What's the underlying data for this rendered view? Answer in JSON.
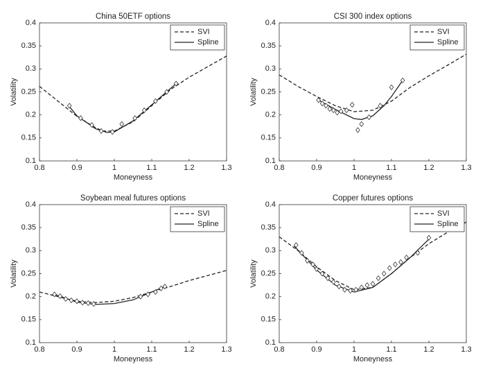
{
  "chart_data": [
    {
      "type": "line",
      "title": "China 50ETF options",
      "xlabel": "Moneyness",
      "ylabel": "Volatility",
      "xlim": [
        0.8,
        1.3
      ],
      "ylim": [
        0.1,
        0.4
      ],
      "xticks": [
        0.8,
        0.9,
        1,
        1.1,
        1.2,
        1.3
      ],
      "yticks": [
        0.1,
        0.15,
        0.2,
        0.25,
        0.3,
        0.35,
        0.4
      ],
      "legend": "upper right",
      "series": [
        {
          "name": "SVI",
          "color": "#222222",
          "dashed": true,
          "x": [
            0.8,
            0.9,
            0.95,
            0.97,
            1.0,
            1.05,
            1.1,
            1.15,
            1.2,
            1.25,
            1.3
          ],
          "values": [
            0.262,
            0.197,
            0.172,
            0.165,
            0.165,
            0.185,
            0.22,
            0.255,
            0.282,
            0.305,
            0.328
          ]
        },
        {
          "name": "Spline",
          "color": "#222222",
          "dashed": false,
          "x": [
            0.88,
            0.9,
            0.95,
            0.98,
            1.0,
            1.05,
            1.1,
            1.165
          ],
          "values": [
            0.218,
            0.198,
            0.17,
            0.162,
            0.163,
            0.187,
            0.222,
            0.268
          ]
        }
      ],
      "points": {
        "x": [
          0.88,
          0.91,
          0.94,
          0.965,
          0.995,
          1.02,
          1.055,
          1.08,
          1.11,
          1.14,
          1.165
        ],
        "values": [
          0.22,
          0.193,
          0.178,
          0.165,
          0.163,
          0.18,
          0.193,
          0.21,
          0.23,
          0.25,
          0.268
        ]
      }
    },
    {
      "type": "line",
      "title": "CSI 300 index options",
      "xlabel": "Moneyness",
      "ylabel": "Volatility",
      "xlim": [
        0.8,
        1.3
      ],
      "ylim": [
        0.1,
        0.4
      ],
      "xticks": [
        0.8,
        0.9,
        1,
        1.1,
        1.2,
        1.3
      ],
      "yticks": [
        0.1,
        0.15,
        0.2,
        0.25,
        0.3,
        0.35,
        0.4
      ],
      "legend": "upper right",
      "series": [
        {
          "name": "SVI",
          "color": "#222222",
          "dashed": true,
          "x": [
            0.8,
            0.85,
            0.9,
            0.95,
            1.0,
            1.05,
            1.1,
            1.15,
            1.2,
            1.25,
            1.3
          ],
          "values": [
            0.287,
            0.262,
            0.24,
            0.22,
            0.207,
            0.21,
            0.23,
            0.26,
            0.285,
            0.308,
            0.332
          ]
        },
        {
          "name": "Spline",
          "color": "#222222",
          "dashed": false,
          "x": [
            0.905,
            0.95,
            1.0,
            1.02,
            1.05,
            1.08,
            1.1,
            1.13
          ],
          "values": [
            0.232,
            0.212,
            0.192,
            0.19,
            0.198,
            0.22,
            0.24,
            0.275
          ]
        }
      ],
      "points": {
        "x": [
          0.905,
          0.915,
          0.925,
          0.935,
          0.945,
          0.955,
          0.965,
          0.98,
          0.995,
          1.01,
          1.02,
          1.04,
          1.07,
          1.1,
          1.13
        ],
        "values": [
          0.232,
          0.225,
          0.22,
          0.213,
          0.21,
          0.205,
          0.208,
          0.21,
          0.222,
          0.167,
          0.18,
          0.195,
          0.22,
          0.26,
          0.275
        ]
      }
    },
    {
      "type": "line",
      "title": "Soybean meal futures options",
      "xlabel": "Moneyness",
      "ylabel": "Volatility",
      "xlim": [
        0.8,
        1.3
      ],
      "ylim": [
        0.1,
        0.4
      ],
      "xticks": [
        0.8,
        0.9,
        1,
        1.1,
        1.2,
        1.3
      ],
      "yticks": [
        0.1,
        0.15,
        0.2,
        0.25,
        0.3,
        0.35,
        0.4
      ],
      "legend": "upper right",
      "series": [
        {
          "name": "SVI",
          "color": "#222222",
          "dashed": true,
          "x": [
            0.8,
            0.85,
            0.9,
            0.95,
            1.0,
            1.05,
            1.1,
            1.15,
            1.2,
            1.25,
            1.3
          ],
          "values": [
            0.21,
            0.2,
            0.19,
            0.187,
            0.19,
            0.198,
            0.21,
            0.222,
            0.235,
            0.246,
            0.257
          ]
        },
        {
          "name": "Spline",
          "color": "#222222",
          "dashed": false,
          "x": [
            0.84,
            0.9,
            0.95,
            1.0,
            1.05,
            1.1,
            1.135
          ],
          "values": [
            0.205,
            0.188,
            0.183,
            0.185,
            0.193,
            0.21,
            0.222
          ]
        }
      ],
      "points": {
        "x": [
          0.84,
          0.855,
          0.87,
          0.885,
          0.9,
          0.915,
          0.93,
          0.945,
          1.07,
          1.09,
          1.11,
          1.125,
          1.135
        ],
        "values": [
          0.205,
          0.201,
          0.195,
          0.192,
          0.19,
          0.187,
          0.186,
          0.184,
          0.2,
          0.205,
          0.21,
          0.218,
          0.222
        ]
      }
    },
    {
      "type": "line",
      "title": "Copper futures options",
      "xlabel": "Moneyness",
      "ylabel": "Volatility",
      "xlim": [
        0.8,
        1.3
      ],
      "ylim": [
        0.1,
        0.4
      ],
      "xticks": [
        0.8,
        0.9,
        1,
        1.1,
        1.2,
        1.3
      ],
      "yticks": [
        0.1,
        0.15,
        0.2,
        0.25,
        0.3,
        0.35,
        0.4
      ],
      "legend": "upper right",
      "series": [
        {
          "name": "SVI",
          "color": "#222222",
          "dashed": true,
          "x": [
            0.8,
            0.85,
            0.9,
            0.95,
            1.0,
            1.05,
            1.1,
            1.15,
            1.2,
            1.25,
            1.3
          ],
          "values": [
            0.33,
            0.3,
            0.265,
            0.235,
            0.215,
            0.22,
            0.25,
            0.285,
            0.315,
            0.34,
            0.362
          ]
        },
        {
          "name": "Spline",
          "color": "#222222",
          "dashed": false,
          "x": [
            0.84,
            0.9,
            0.95,
            1.0,
            1.05,
            1.1,
            1.15,
            1.2
          ],
          "values": [
            0.31,
            0.258,
            0.225,
            0.21,
            0.22,
            0.25,
            0.285,
            0.325
          ]
        }
      ],
      "points": {
        "x": [
          0.845,
          0.86,
          0.875,
          0.89,
          0.9,
          0.915,
          0.93,
          0.945,
          0.96,
          0.975,
          0.99,
          1.005,
          1.02,
          1.035,
          1.05,
          1.065,
          1.08,
          1.095,
          1.11,
          1.125,
          1.14,
          1.17,
          1.2
        ],
        "values": [
          0.312,
          0.295,
          0.278,
          0.27,
          0.26,
          0.25,
          0.24,
          0.232,
          0.222,
          0.215,
          0.213,
          0.215,
          0.22,
          0.225,
          0.228,
          0.24,
          0.25,
          0.262,
          0.27,
          0.275,
          0.285,
          0.295,
          0.328
        ]
      }
    }
  ]
}
